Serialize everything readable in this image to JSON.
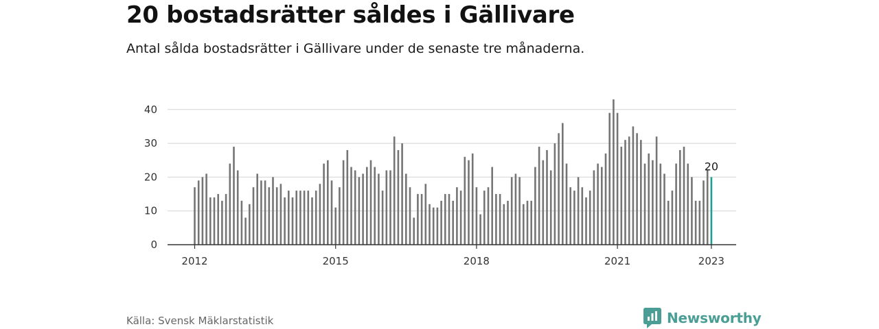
{
  "title": "20 bostadsrätter såldes i Gällivare",
  "subtitle": "Antal sålda bostadsrätter i Gällivare under de senaste tre månaderna.",
  "source": "Källa: Svensk Mäklarstatistik",
  "brand": "Newsworthy",
  "colors": {
    "bar": "#757575",
    "highlight": "#1f9e92",
    "grid": "#d4d4d4",
    "axis": "#333333",
    "brand": "#4a9e95"
  },
  "chart_data": {
    "type": "bar",
    "title": "20 bostadsrätter såldes i Gällivare",
    "xlabel": "",
    "ylabel": "",
    "ylim": [
      0,
      43
    ],
    "yticks": [
      0,
      10,
      20,
      30,
      40
    ],
    "x_tick_labels": [
      {
        "label": "2012",
        "index": 0
      },
      {
        "label": "2015",
        "index": 36
      },
      {
        "label": "2018",
        "index": 72
      },
      {
        "label": "2021",
        "index": 108
      },
      {
        "label": "2023",
        "index": 132
      }
    ],
    "highlight_index": 132,
    "highlight_label": "20",
    "values": [
      17,
      19,
      20,
      21,
      14,
      14,
      15,
      13,
      15,
      24,
      29,
      22,
      13,
      8,
      12,
      17,
      21,
      19,
      19,
      17,
      20,
      17,
      18,
      14,
      16,
      14,
      16,
      16,
      16,
      16,
      14,
      16,
      18,
      24,
      25,
      19,
      11,
      17,
      25,
      28,
      23,
      22,
      20,
      21,
      23,
      25,
      23,
      21,
      16,
      22,
      22,
      32,
      28,
      30,
      21,
      17,
      8,
      15,
      15,
      18,
      12,
      11,
      11,
      13,
      15,
      15,
      13,
      17,
      16,
      26,
      25,
      27,
      17,
      9,
      16,
      17,
      23,
      15,
      15,
      12,
      13,
      20,
      21,
      20,
      12,
      13,
      13,
      23,
      29,
      25,
      28,
      22,
      30,
      33,
      36,
      24,
      17,
      16,
      20,
      17,
      14,
      16,
      22,
      24,
      23,
      27,
      39,
      43,
      39,
      29,
      31,
      32,
      35,
      33,
      31,
      24,
      27,
      25,
      32,
      24,
      21,
      13,
      16,
      24,
      28,
      29,
      24,
      20,
      13,
      13,
      19,
      22,
      20
    ]
  }
}
